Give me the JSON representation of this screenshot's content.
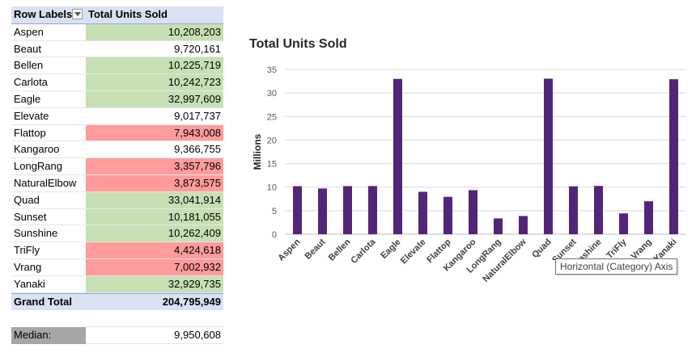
{
  "pivot": {
    "header": {
      "row_labels": "Row Labels",
      "total_units": "Total Units Sold"
    },
    "rows": [
      {
        "label": "Aspen",
        "value": "10,208,203",
        "highlight": "green"
      },
      {
        "label": "Beaut",
        "value": "9,720,161",
        "highlight": "none"
      },
      {
        "label": "Bellen",
        "value": "10,225,719",
        "highlight": "green"
      },
      {
        "label": "Carlota",
        "value": "10,242,723",
        "highlight": "green"
      },
      {
        "label": "Eagle",
        "value": "32,997,609",
        "highlight": "green"
      },
      {
        "label": "Elevate",
        "value": "9,017,737",
        "highlight": "none"
      },
      {
        "label": "Flattop",
        "value": "7,943,008",
        "highlight": "red"
      },
      {
        "label": "Kangaroo",
        "value": "9,366,755",
        "highlight": "none"
      },
      {
        "label": "LongRang",
        "value": "3,357,796",
        "highlight": "red"
      },
      {
        "label": "NaturalElbow",
        "value": "3,873,575",
        "highlight": "red"
      },
      {
        "label": "Quad",
        "value": "33,041,914",
        "highlight": "green"
      },
      {
        "label": "Sunset",
        "value": "10,181,055",
        "highlight": "green"
      },
      {
        "label": "Sunshine",
        "value": "10,262,409",
        "highlight": "green"
      },
      {
        "label": "TriFly",
        "value": "4,424,618",
        "highlight": "red"
      },
      {
        "label": "Vrang",
        "value": "7,002,932",
        "highlight": "red"
      },
      {
        "label": "Yanaki",
        "value": "32,929,735",
        "highlight": "green"
      }
    ],
    "grand_total": {
      "label": "Grand Total",
      "value": "204,795,949"
    },
    "median": {
      "label": "Median:",
      "value": "9,950,608"
    }
  },
  "colors": {
    "bar": "#532578",
    "green_fill": "#c6e0b4",
    "red_fill": "#ff9b9b",
    "header_fill": "#d9e1f2"
  },
  "tooltip": "Horizontal (Category) Axis",
  "chart_data": {
    "type": "bar",
    "title": "Total Units Sold",
    "xlabel": "",
    "ylabel": "Millions",
    "ylim": [
      0,
      35
    ],
    "yticks": [
      "0",
      "5",
      "10",
      "15",
      "20",
      "25",
      "30",
      "35"
    ],
    "grid": true,
    "legend": "none",
    "categories": [
      "Aspen",
      "Beaut",
      "Bellen",
      "Carlota",
      "Eagle",
      "Elevate",
      "Flattop",
      "Kangaroo",
      "LongRang",
      "NaturalElbow",
      "Quad",
      "Sunset",
      "Sunshine",
      "TriFly",
      "Vrang",
      "Yanaki"
    ],
    "values": [
      10.208203,
      9.720161,
      10.225719,
      10.242723,
      32.997609,
      9.017737,
      7.943008,
      9.366755,
      3.357796,
      3.873575,
      33.041914,
      10.181055,
      10.262409,
      4.424618,
      7.002932,
      32.929735
    ]
  }
}
